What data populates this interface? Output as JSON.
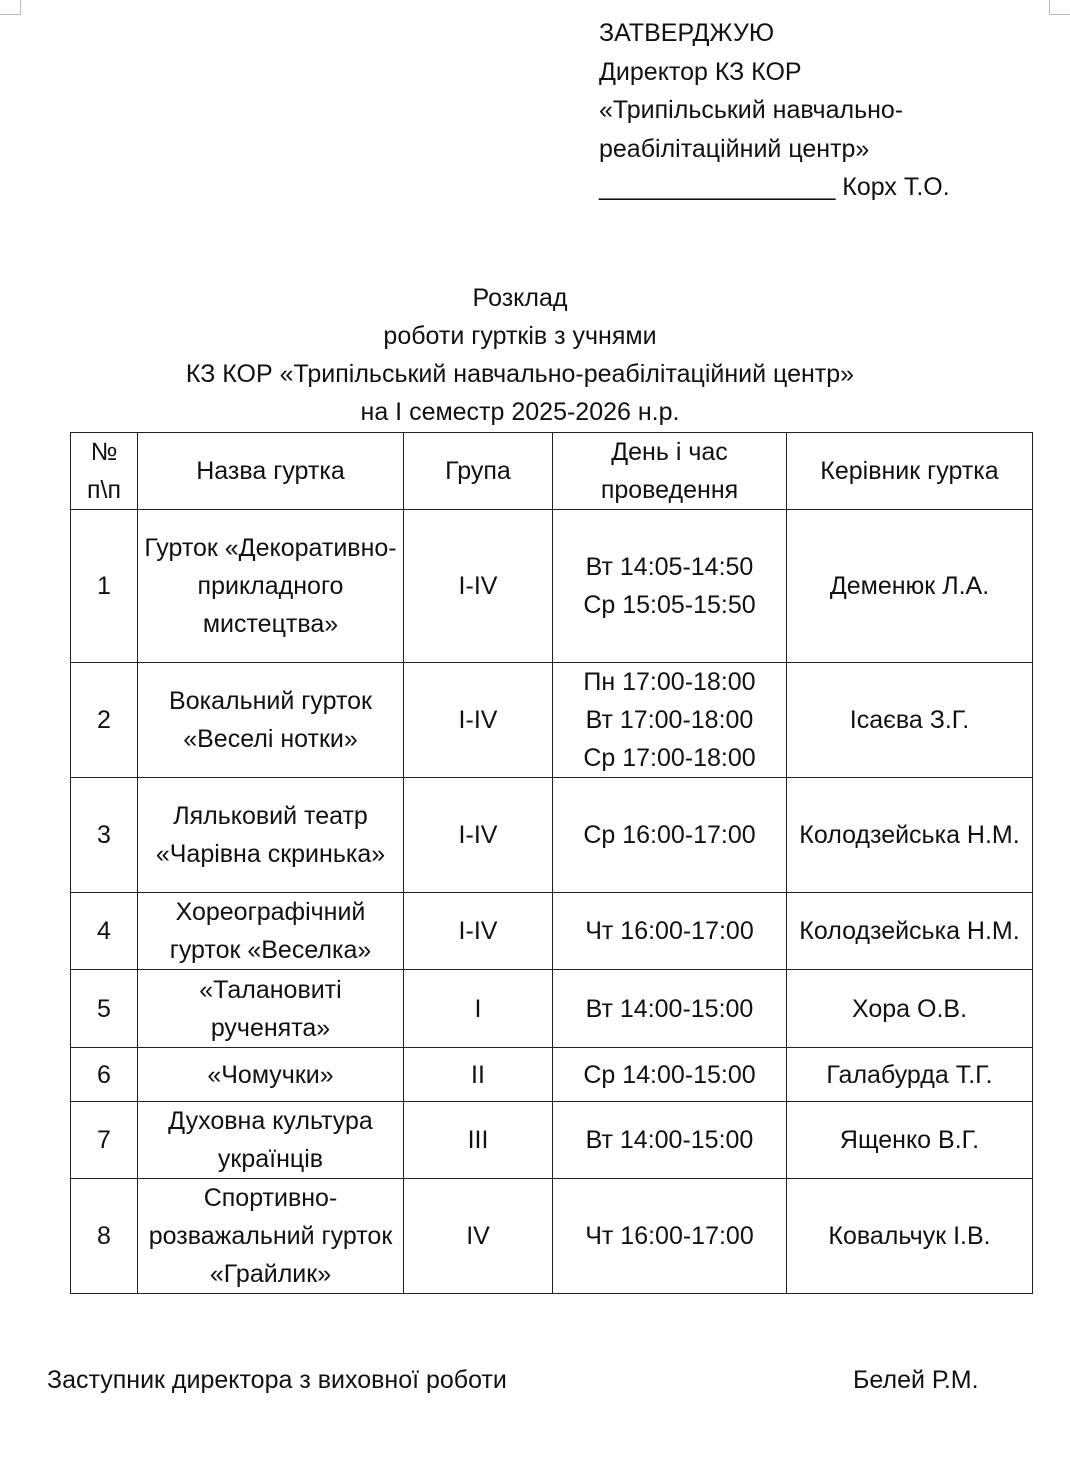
{
  "approval": {
    "line1": "ЗАТВЕРДЖУЮ",
    "line2": "Директор КЗ КОР",
    "line3": "«Трипільський навчально-",
    "line4": "реабілітаційний центр»",
    "line5": "_________________ Корх Т.О."
  },
  "title": {
    "line1": "Розклад",
    "line2": "роботи гуртків з учнями",
    "line3": "КЗ КОР «Трипільський навчально-реабілітаційний центр»",
    "line4": "на І семестр 2025-2026 н.р."
  },
  "table": {
    "headers": [
      "№ п\\п",
      "Назва гуртка",
      "Група",
      "День і час проведення",
      "Керівник гуртка"
    ],
    "rows": [
      {
        "num": "1",
        "name": "Гурток «Декоративно-прикладного мистецтва»",
        "group": "I-IV",
        "time": [
          "Вт 14:05-14:50",
          "Ср 15:05-15:50"
        ],
        "leader": "Деменюк Л.А."
      },
      {
        "num": "2",
        "name": "Вокальний гурток «Веселі нотки»",
        "group": "I-IV",
        "time": [
          "Пн 17:00-18:00",
          "Вт 17:00-18:00",
          "Ср 17:00-18:00"
        ],
        "leader": "Ісаєва З.Г."
      },
      {
        "num": "3",
        "name": "Ляльковий театр «Чарівна скринька»",
        "group": "I-IV",
        "time": [
          "Ср 16:00-17:00"
        ],
        "leader": "Колодзейська Н.М."
      },
      {
        "num": "4",
        "name": "Хореографічний гурток «Веселка»",
        "group": "I-IV",
        "time": [
          "Чт 16:00-17:00"
        ],
        "leader": "Колодзейська Н.М."
      },
      {
        "num": "5",
        "name": "«Талановиті рученята»",
        "group": "I",
        "time": [
          "Вт 14:00-15:00"
        ],
        "leader": "Хора О.В."
      },
      {
        "num": "6",
        "name": "«Чомучки»",
        "group": "II",
        "time": [
          "Ср 14:00-15:00"
        ],
        "leader": "Галабурда Т.Г."
      },
      {
        "num": "7",
        "name": "Духовна культура українців",
        "group": "III",
        "time": [
          "Вт 14:00-15:00"
        ],
        "leader": "Ященко В.Г."
      },
      {
        "num": "8",
        "name": "Спортивно-розважальний гурток «Грайлик»",
        "group": "IV",
        "time": [
          "Чт 16:00-17:00"
        ],
        "leader": "Ковальчук І.В."
      }
    ]
  },
  "footer": {
    "position": "Заступник директора з виховної роботи",
    "name": "Белей Р.М."
  }
}
